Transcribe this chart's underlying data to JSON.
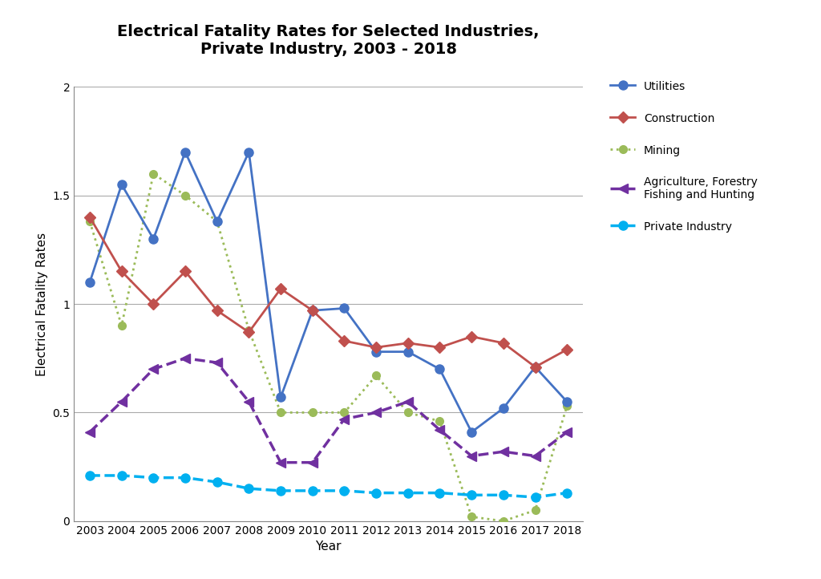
{
  "title": "Electrical Fatality Rates for Selected Industries,\nPrivate Industry, 2003 - 2018",
  "xlabel": "Year",
  "ylabel": "Electrical Fatality Rates",
  "years": [
    2003,
    2004,
    2005,
    2006,
    2007,
    2008,
    2009,
    2010,
    2011,
    2012,
    2013,
    2014,
    2015,
    2016,
    2017,
    2018
  ],
  "utilities": [
    1.1,
    1.55,
    1.3,
    1.7,
    1.38,
    1.7,
    0.57,
    0.97,
    0.98,
    0.78,
    0.78,
    0.7,
    0.41,
    0.52,
    0.71,
    0.55
  ],
  "construction": [
    1.4,
    1.15,
    1.0,
    1.15,
    0.97,
    0.87,
    1.07,
    0.97,
    0.83,
    0.8,
    0.82,
    0.8,
    0.85,
    0.82,
    0.71,
    0.79
  ],
  "mining": [
    1.38,
    0.9,
    1.6,
    1.5,
    1.38,
    0.88,
    0.5,
    0.5,
    0.5,
    0.67,
    0.5,
    0.46,
    0.02,
    0.0,
    0.05,
    0.53
  ],
  "agriculture": [
    0.41,
    0.55,
    0.7,
    0.75,
    0.73,
    0.55,
    0.27,
    0.27,
    0.47,
    0.5,
    0.55,
    0.42,
    0.3,
    0.32,
    0.3,
    0.41
  ],
  "private_industry": [
    0.21,
    0.21,
    0.2,
    0.2,
    0.18,
    0.15,
    0.14,
    0.14,
    0.14,
    0.13,
    0.13,
    0.13,
    0.12,
    0.12,
    0.11,
    0.13
  ],
  "utilities_color": "#4472C4",
  "construction_color": "#C0504D",
  "mining_color": "#9BBB59",
  "agriculture_color": "#7030A0",
  "private_color": "#00B0F0",
  "ylim": [
    0,
    2.0
  ],
  "yticks": [
    0,
    0.5,
    1.0,
    1.5,
    2.0
  ],
  "background_color": "#FFFFFF",
  "title_fontsize": 14,
  "axis_fontsize": 11,
  "tick_fontsize": 10,
  "legend_labels": [
    "Utilities",
    "Construction",
    "Mining",
    "Agriculture, Forestry\nFishing and Hunting",
    "Private Industry"
  ]
}
